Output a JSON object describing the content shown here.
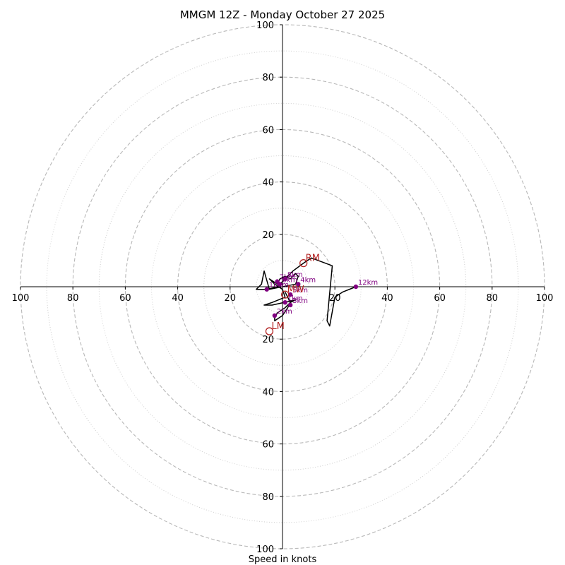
{
  "chart_data": {
    "type": "hodograph",
    "title": "MMGM 12Z - Monday October 27 2025",
    "xlabel": "Speed in knots",
    "range": [
      -100,
      100
    ],
    "dashed_rings": [
      20,
      40,
      60,
      80,
      100
    ],
    "dotted_rings": [
      10,
      30,
      50,
      70,
      90
    ],
    "x_ticks": [
      "100",
      "80",
      "60",
      "40",
      "20",
      "20",
      "40",
      "60",
      "80",
      "100"
    ],
    "x_tick_values": [
      -100,
      -80,
      -60,
      -40,
      -20,
      20,
      40,
      60,
      80,
      100
    ],
    "y_ticks": [
      "100",
      "80",
      "60",
      "40",
      "20",
      "20",
      "40",
      "60",
      "80",
      "100"
    ],
    "y_tick_values": [
      100,
      80,
      60,
      40,
      20,
      -20,
      -40,
      -60,
      -80,
      -100
    ],
    "trace": [
      [
        1,
        -2
      ],
      [
        3,
        -6
      ],
      [
        2,
        -8
      ],
      [
        0,
        -11
      ],
      [
        -3,
        -13
      ],
      [
        -3,
        -12
      ],
      [
        -2,
        -10
      ],
      [
        1,
        -8
      ],
      [
        3,
        -6
      ],
      [
        5,
        -5
      ],
      [
        -4,
        -7
      ],
      [
        -7,
        -7
      ],
      [
        -4,
        -6
      ],
      [
        1,
        -4
      ],
      [
        0,
        -1
      ],
      [
        -3,
        1
      ],
      [
        -5,
        3
      ],
      [
        -2,
        1
      ],
      [
        -1,
        3
      ],
      [
        1,
        4
      ],
      [
        3,
        3
      ],
      [
        5,
        5
      ],
      [
        6,
        4
      ],
      [
        5,
        1
      ],
      [
        -5,
        -1
      ],
      [
        -7,
        6
      ],
      [
        -8,
        1
      ],
      [
        -10,
        -1
      ],
      [
        -6,
        -1
      ],
      [
        -2,
        0
      ],
      [
        1,
        3
      ],
      [
        4,
        6
      ],
      [
        8,
        9
      ],
      [
        11,
        11
      ],
      [
        19,
        8
      ],
      [
        17,
        -13
      ],
      [
        18,
        -15
      ],
      [
        20,
        -4
      ],
      [
        23,
        -2
      ],
      [
        28,
        0
      ]
    ],
    "height_markers": [
      {
        "label": "1km",
        "u": 1,
        "v": -6
      },
      {
        "label": "2km",
        "u": -3,
        "v": -11
      },
      {
        "label": "3km",
        "u": 3,
        "v": -7
      },
      {
        "label": "4km",
        "u": 6,
        "v": 1
      },
      {
        "label": "5km",
        "u": 3,
        "v": -3
      },
      {
        "label": "6km",
        "u": -1,
        "v": 1
      },
      {
        "label": "7km",
        "u": -2,
        "v": 2
      },
      {
        "label": "8km",
        "u": 1,
        "v": 3
      },
      {
        "label": "10km",
        "u": -6,
        "v": -1
      },
      {
        "label": "12km",
        "u": 28,
        "v": 0
      }
    ],
    "motion_points": [
      {
        "label": "RM",
        "u": 8,
        "v": 9
      },
      {
        "label": "LM",
        "u": -5,
        "v": -17
      },
      {
        "label": "MW",
        "u": 1,
        "v": -3
      }
    ],
    "colors": {
      "trace": "#000000",
      "markers": "#800080",
      "motion": "#b22222",
      "dashed_ring": "#b8b8b8",
      "dotted_ring": "#cfcfcf"
    }
  }
}
